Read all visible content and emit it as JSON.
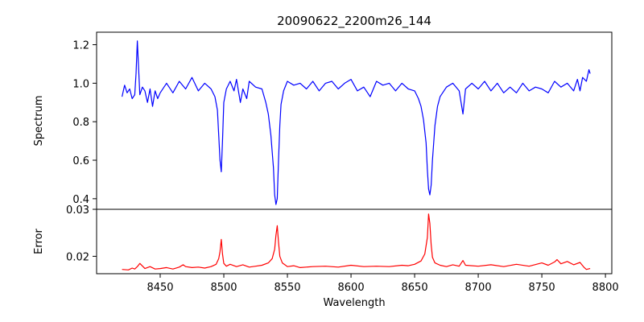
{
  "chart_data": [
    {
      "type": "line",
      "title": "20090622_2200m26_144",
      "xlabel": "",
      "ylabel": "Spectrum",
      "xlim": [
        8400,
        8805
      ],
      "ylim": [
        0.345,
        1.265
      ],
      "x_ticks": [],
      "y_ticks": [
        0.4,
        0.6,
        0.8,
        1.0,
        1.2
      ],
      "y_tick_labels": [
        "0.4",
        "0.6",
        "0.8",
        "1.0",
        "1.2"
      ],
      "grid": false,
      "series": [
        {
          "color": "#0000ff",
          "x": [
            8420,
            8422,
            8424,
            8426,
            8428,
            8430,
            8431,
            8432,
            8434,
            8436,
            8438,
            8440,
            8442,
            8444,
            8446,
            8448,
            8450,
            8455,
            8460,
            8465,
            8470,
            8475,
            8480,
            8485,
            8490,
            8493,
            8495,
            8496,
            8497,
            8498,
            8499,
            8500,
            8502,
            8505,
            8508,
            8510,
            8513,
            8515,
            8518,
            8520,
            8525,
            8530,
            8533,
            8535,
            8537,
            8539,
            8540,
            8541,
            8542,
            8543,
            8544,
            8545,
            8547,
            8550,
            8555,
            8560,
            8565,
            8570,
            8575,
            8580,
            8585,
            8590,
            8595,
            8600,
            8605,
            8610,
            8615,
            8620,
            8625,
            8630,
            8635,
            8640,
            8645,
            8650,
            8653,
            8655,
            8657,
            8659,
            8660,
            8661,
            8662,
            8663,
            8664,
            8666,
            8668,
            8670,
            8675,
            8680,
            8685,
            8688,
            8690,
            8695,
            8700,
            8705,
            8710,
            8715,
            8720,
            8725,
            8730,
            8735,
            8740,
            8745,
            8750,
            8755,
            8760,
            8765,
            8770,
            8775,
            8778,
            8780,
            8782,
            8785,
            8787,
            8788
          ],
          "y": [
            0.93,
            0.99,
            0.95,
            0.97,
            0.92,
            0.94,
            1.05,
            1.22,
            0.94,
            0.98,
            0.96,
            0.9,
            0.97,
            0.88,
            0.96,
            0.92,
            0.95,
            1.0,
            0.95,
            1.01,
            0.97,
            1.03,
            0.96,
            1.0,
            0.97,
            0.93,
            0.86,
            0.73,
            0.6,
            0.54,
            0.7,
            0.9,
            0.97,
            1.01,
            0.96,
            1.02,
            0.9,
            0.97,
            0.92,
            1.01,
            0.98,
            0.97,
            0.9,
            0.84,
            0.73,
            0.56,
            0.42,
            0.37,
            0.4,
            0.6,
            0.78,
            0.89,
            0.96,
            1.01,
            0.99,
            1.0,
            0.97,
            1.01,
            0.96,
            1.0,
            1.01,
            0.97,
            1.0,
            1.02,
            0.96,
            0.98,
            0.93,
            1.01,
            0.99,
            1.0,
            0.96,
            1.0,
            0.97,
            0.96,
            0.92,
            0.88,
            0.81,
            0.69,
            0.55,
            0.45,
            0.42,
            0.47,
            0.6,
            0.78,
            0.88,
            0.93,
            0.98,
            1.0,
            0.96,
            0.84,
            0.97,
            1.0,
            0.97,
            1.01,
            0.96,
            1.0,
            0.95,
            0.98,
            0.95,
            1.0,
            0.96,
            0.98,
            0.97,
            0.95,
            1.01,
            0.98,
            1.0,
            0.96,
            1.02,
            0.96,
            1.03,
            1.01,
            1.07,
            1.05
          ]
        }
      ]
    },
    {
      "type": "line",
      "title": "",
      "xlabel": "Wavelength",
      "ylabel": "Error",
      "xlim": [
        8400,
        8805
      ],
      "ylim": [
        0.0163,
        0.03
      ],
      "x_ticks": [
        8450,
        8500,
        8550,
        8600,
        8650,
        8700,
        8750,
        8800
      ],
      "x_tick_labels": [
        "8450",
        "8500",
        "8550",
        "8600",
        "8650",
        "8700",
        "8750",
        "8800"
      ],
      "y_ticks": [
        0.02,
        0.03
      ],
      "y_tick_labels": [
        "0.02",
        "0.03"
      ],
      "grid": false,
      "series": [
        {
          "color": "#ff0000",
          "x": [
            8420,
            8425,
            8428,
            8430,
            8432,
            8434,
            8438,
            8442,
            8446,
            8450,
            8455,
            8460,
            8465,
            8468,
            8470,
            8475,
            8480,
            8485,
            8490,
            8494,
            8496,
            8497,
            8498,
            8499,
            8500,
            8502,
            8505,
            8510,
            8515,
            8520,
            8525,
            8530,
            8535,
            8538,
            8540,
            8541,
            8542,
            8543,
            8544,
            8546,
            8548,
            8550,
            8555,
            8560,
            8570,
            8580,
            8590,
            8600,
            8610,
            8620,
            8630,
            8640,
            8645,
            8650,
            8655,
            8658,
            8660,
            8661,
            8662,
            8663,
            8664,
            8666,
            8670,
            8675,
            8680,
            8685,
            8688,
            8690,
            8700,
            8710,
            8720,
            8730,
            8740,
            8750,
            8755,
            8760,
            8762,
            8765,
            8770,
            8775,
            8780,
            8783,
            8785,
            8788
          ],
          "y": [
            0.0172,
            0.0171,
            0.0175,
            0.0173,
            0.0178,
            0.0185,
            0.0174,
            0.0178,
            0.0173,
            0.0174,
            0.0176,
            0.0173,
            0.0177,
            0.0182,
            0.0178,
            0.0176,
            0.0177,
            0.0175,
            0.0178,
            0.0183,
            0.0195,
            0.021,
            0.0236,
            0.0205,
            0.0185,
            0.0179,
            0.0183,
            0.0178,
            0.0182,
            0.0177,
            0.0179,
            0.0181,
            0.0186,
            0.0195,
            0.0215,
            0.0245,
            0.0265,
            0.023,
            0.02,
            0.0186,
            0.0182,
            0.0178,
            0.018,
            0.0176,
            0.0178,
            0.0179,
            0.0177,
            0.0181,
            0.0178,
            0.0179,
            0.0178,
            0.0181,
            0.018,
            0.0183,
            0.019,
            0.0205,
            0.024,
            0.029,
            0.027,
            0.0225,
            0.0198,
            0.0186,
            0.0181,
            0.0178,
            0.0182,
            0.0179,
            0.0191,
            0.0181,
            0.0179,
            0.0182,
            0.0178,
            0.0183,
            0.0179,
            0.0186,
            0.0181,
            0.0188,
            0.0193,
            0.0184,
            0.0189,
            0.0182,
            0.0187,
            0.0177,
            0.0172,
            0.0174
          ]
        }
      ]
    }
  ]
}
